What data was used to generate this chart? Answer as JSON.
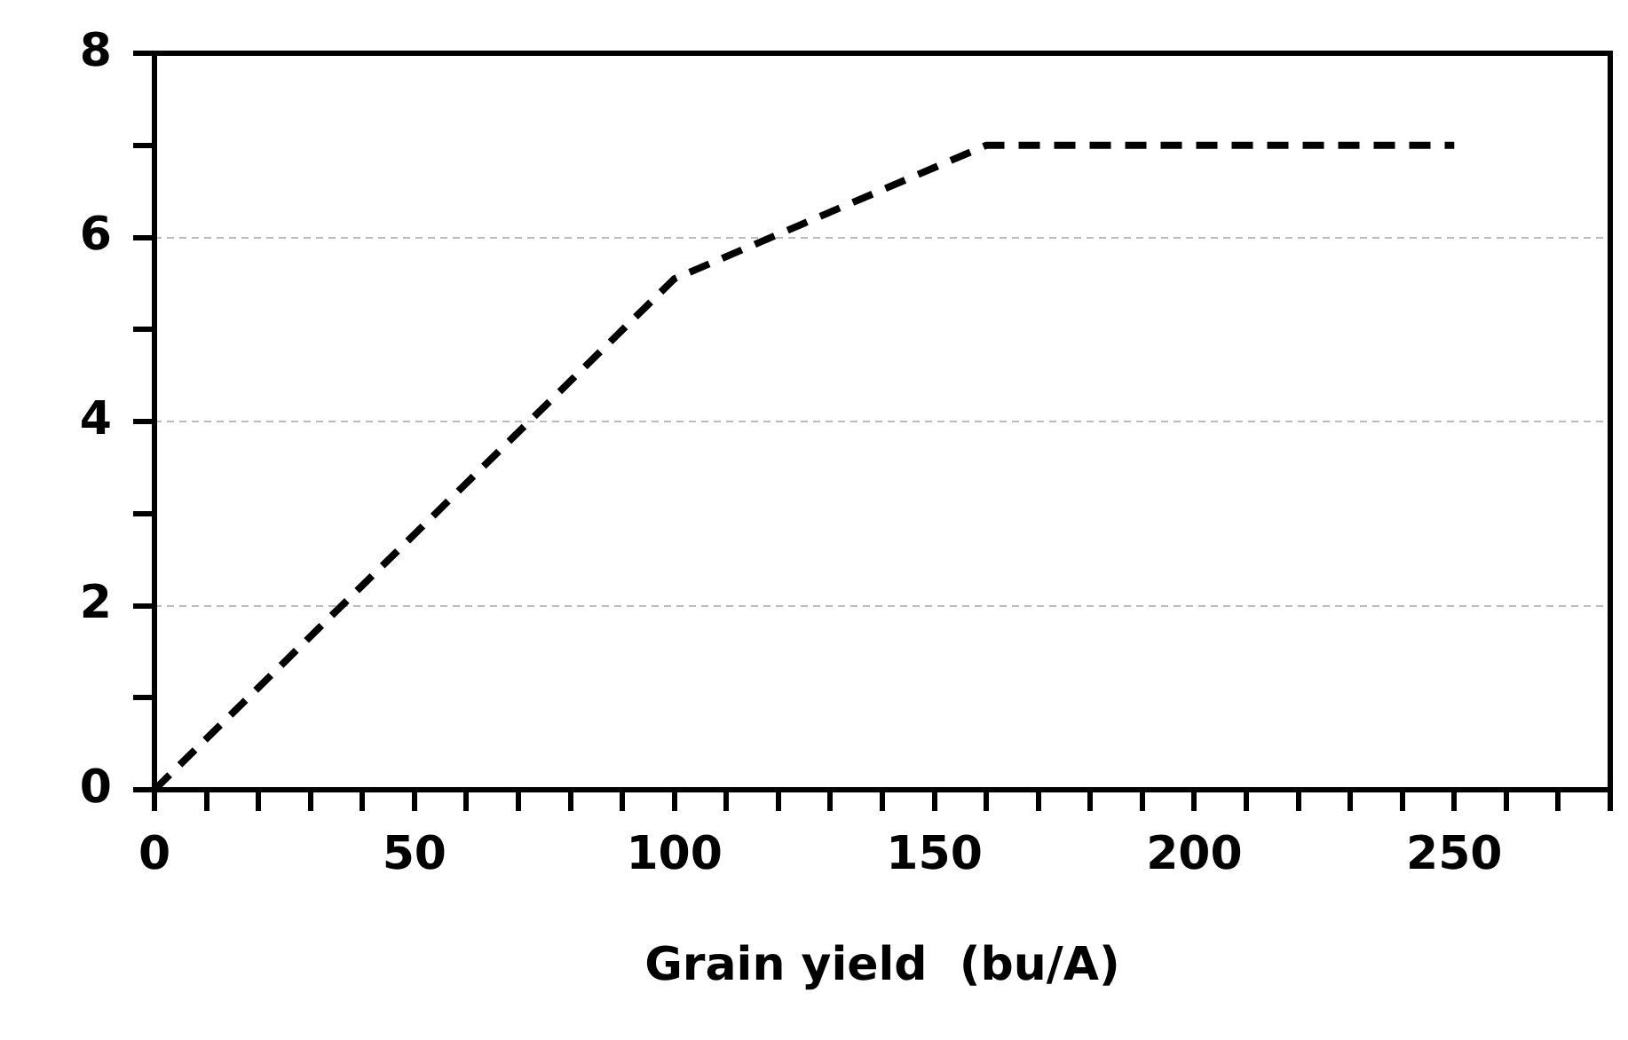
{
  "chart_data": {
    "type": "line",
    "xlabel": "Grain yield  (bu/A)",
    "x": [
      0,
      100,
      160,
      250
    ],
    "series": [
      {
        "color": "#000000",
        "values": [
          0,
          5.55,
          7,
          7
        ]
      }
    ],
    "xlim": [
      0,
      280
    ],
    "xticks": [
      0,
      {
        "value": 10,
        "label": null
      },
      {
        "value": 20,
        "label": null
      },
      {
        "value": 30,
        "label": null
      },
      {
        "value": 40,
        "label": null
      },
      50,
      {
        "value": 60,
        "label": null
      },
      {
        "value": 70,
        "label": null
      },
      {
        "value": 80,
        "label": null
      },
      {
        "value": 90,
        "label": null
      },
      100,
      {
        "value": 110,
        "label": null
      },
      {
        "value": 120,
        "label": null
      },
      {
        "value": 130,
        "label": null
      },
      {
        "value": 140,
        "label": null
      },
      150,
      {
        "value": 160,
        "label": null
      },
      {
        "value": 170,
        "label": null
      },
      {
        "value": 180,
        "label": null
      },
      {
        "value": 190,
        "label": null
      },
      200,
      {
        "value": 210,
        "label": null
      },
      {
        "value": 220,
        "label": null
      },
      {
        "value": 230,
        "label": null
      },
      {
        "value": 240,
        "label": null
      },
      250,
      {
        "value": 260,
        "label": null
      },
      {
        "value": 270,
        "label": null
      },
      {
        "value": 280,
        "label": null
      }
    ],
    "ylim": [
      0,
      8
    ],
    "yticks": [
      0,
      {
        "value": 1,
        "label": null
      },
      2,
      {
        "value": 3,
        "label": null
      },
      4,
      {
        "value": 5,
        "label": null
      },
      6,
      {
        "value": 7,
        "label": null
      },
      8
    ],
    "grid": "y",
    "marker": "none",
    "line_style": "dashed"
  }
}
